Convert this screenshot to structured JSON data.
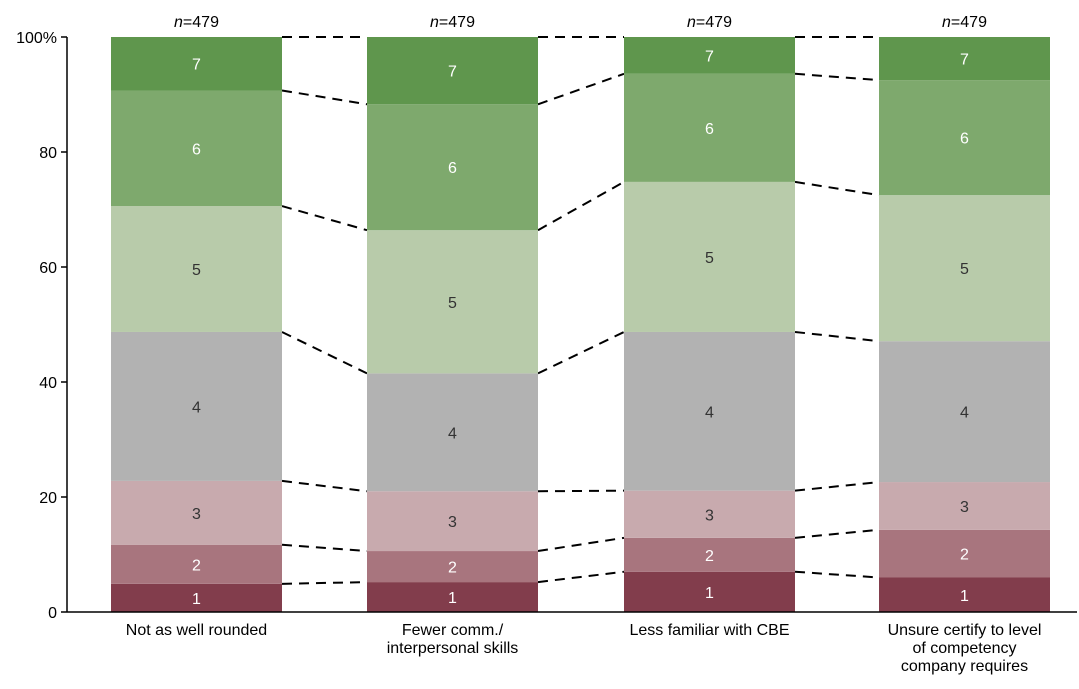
{
  "chart_data": {
    "type": "bar",
    "stacked": true,
    "categories": [
      [
        "Not as well rounded"
      ],
      [
        "Fewer comm./",
        "interpersonal skills"
      ],
      [
        "Less familiar with CBE"
      ],
      [
        "Unsure certify to level",
        "of competency",
        "company requires"
      ]
    ],
    "n_labels": [
      "n=479",
      "n=479",
      "n=479",
      "n=479"
    ],
    "series": [
      {
        "name": "1",
        "color": "#823d4c",
        "label_color": "#ffffff",
        "values": [
          4.9,
          5.2,
          7.0,
          6.0
        ]
      },
      {
        "name": "2",
        "color": "#a8757e",
        "label_color": "#ffffff",
        "values": [
          6.8,
          5.4,
          5.9,
          8.3
        ]
      },
      {
        "name": "3",
        "color": "#c8aaae",
        "label_color": "#333333",
        "values": [
          11.1,
          10.4,
          8.2,
          8.3
        ]
      },
      {
        "name": "4",
        "color": "#b2b2b2",
        "label_color": "#333333",
        "values": [
          25.9,
          20.5,
          27.6,
          24.5
        ]
      },
      {
        "name": "5",
        "color": "#b8cbaa",
        "label_color": "#333333",
        "values": [
          21.9,
          24.9,
          26.1,
          25.4
        ]
      },
      {
        "name": "6",
        "color": "#7ea96d",
        "label_color": "#ffffff",
        "values": [
          20.1,
          21.9,
          18.8,
          20.0
        ]
      },
      {
        "name": "7",
        "color": "#5f964d",
        "label_color": "#ffffff",
        "values": [
          9.3,
          11.7,
          6.4,
          7.5
        ]
      }
    ],
    "yticks": [
      "0",
      "20",
      "40",
      "60",
      "80",
      "100%"
    ],
    "ylim": [
      0,
      100
    ],
    "connectors": "dashed"
  }
}
